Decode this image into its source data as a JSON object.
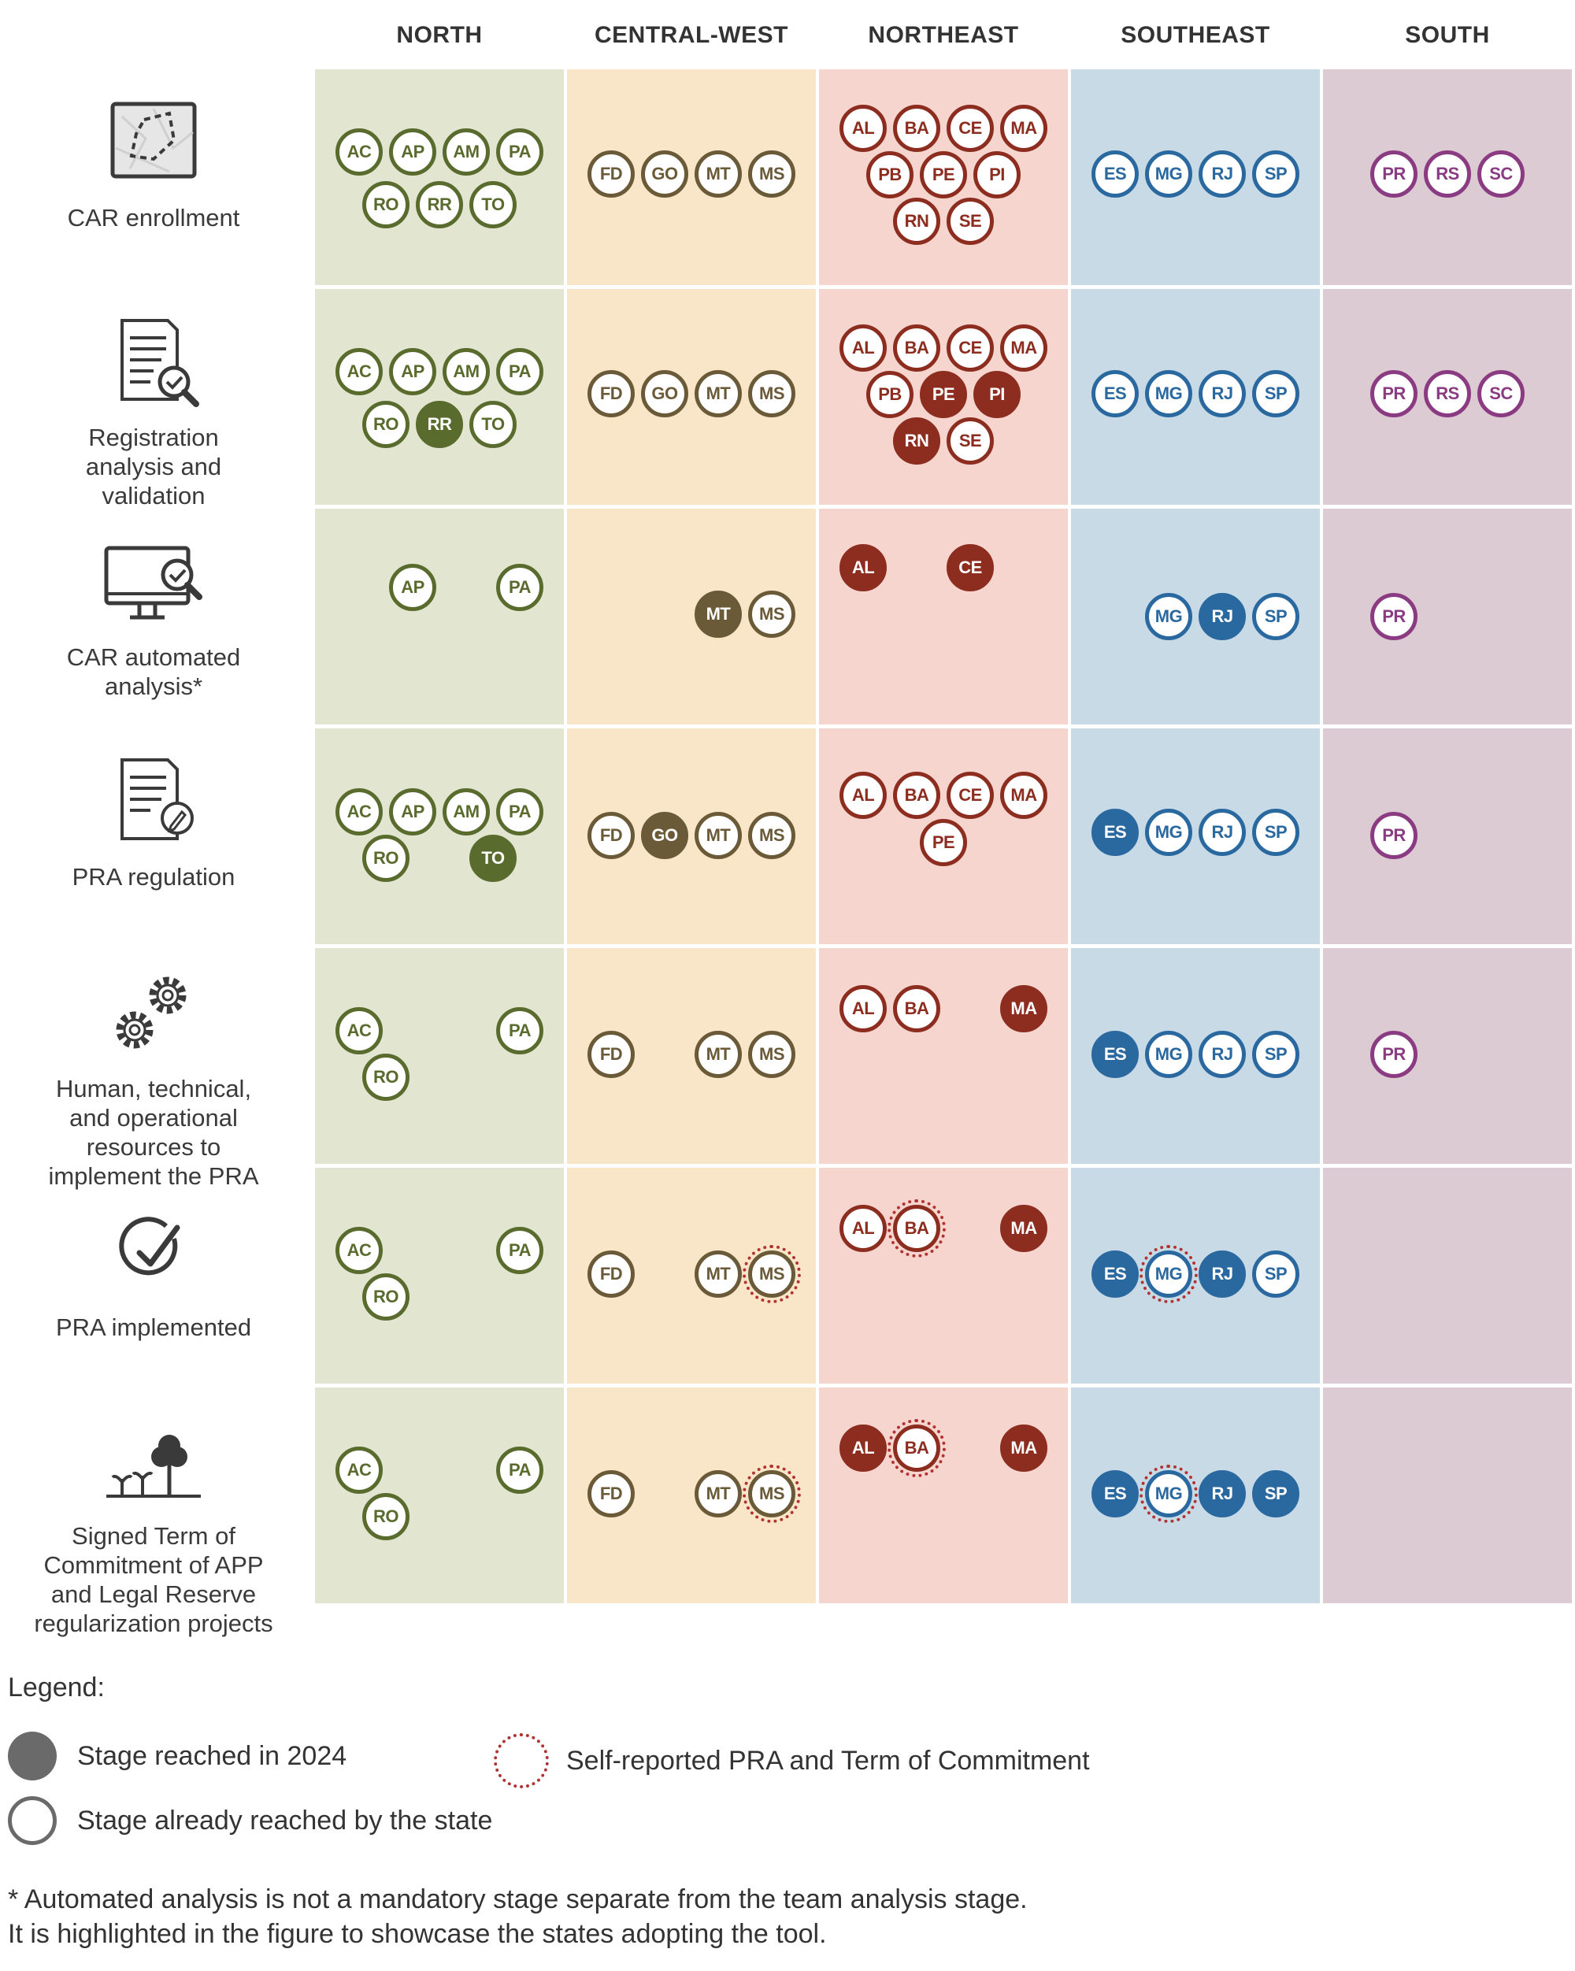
{
  "regions": [
    {
      "name": "NORTH",
      "bg": "#e2e6d1",
      "color": "#5a6b2e"
    },
    {
      "name": "CENTRAL-WEST",
      "bg": "#f9e6c8",
      "color": "#6b5a38"
    },
    {
      "name": "NORTHEAST",
      "bg": "#f5d5cd",
      "color": "#8c2d20"
    },
    {
      "name": "SOUTHEAST",
      "bg": "#c8dae5",
      "color": "#2a68a0"
    },
    {
      "name": "SOUTH",
      "bg": "#dccbd3",
      "color": "#8a3b82"
    }
  ],
  "stages": [
    {
      "label": "CAR enrollment",
      "icon": "map-icon"
    },
    {
      "label": "Registration analysis and validation",
      "icon": "document-search-icon"
    },
    {
      "label": "CAR automated analysis*",
      "icon": "computer-check-icon"
    },
    {
      "label": "PRA regulation",
      "icon": "document-pen-icon"
    },
    {
      "label": "Human, technical, and operational resources to implement the PRA",
      "icon": "gears-icon"
    },
    {
      "label": "PRA implemented",
      "icon": "checkmark-icon"
    },
    {
      "label": "Signed Term of Commitment of APP and Legal Reserve regularization projects",
      "icon": "trees-icon"
    }
  ],
  "cells": [
    [
      [
        {
          "s": "AC",
          "st": "o"
        },
        {
          "s": "AP",
          "st": "o"
        },
        {
          "s": "AM",
          "st": "o"
        },
        {
          "s": "PA",
          "st": "o"
        },
        {
          "s": "RO",
          "st": "o"
        },
        {
          "s": "RR",
          "st": "o"
        },
        {
          "s": "TO",
          "st": "o"
        }
      ],
      [
        {
          "s": "FD",
          "st": "o"
        },
        {
          "s": "GO",
          "st": "o"
        },
        {
          "s": "MT",
          "st": "o"
        },
        {
          "s": "MS",
          "st": "o"
        }
      ],
      [
        {
          "s": "AL",
          "st": "o"
        },
        {
          "s": "BA",
          "st": "o"
        },
        {
          "s": "CE",
          "st": "o"
        },
        {
          "s": "MA",
          "st": "o"
        },
        {
          "s": "PB",
          "st": "o"
        },
        {
          "s": "PE",
          "st": "o"
        },
        {
          "s": "PI",
          "st": "o"
        },
        {
          "s": "RN",
          "st": "o"
        },
        {
          "s": "SE",
          "st": "o"
        }
      ],
      [
        {
          "s": "ES",
          "st": "o"
        },
        {
          "s": "MG",
          "st": "o"
        },
        {
          "s": "RJ",
          "st": "o"
        },
        {
          "s": "SP",
          "st": "o"
        }
      ],
      [
        {
          "s": "PR",
          "st": "o"
        },
        {
          "s": "RS",
          "st": "o"
        },
        {
          "s": "SC",
          "st": "o"
        }
      ]
    ],
    [
      [
        {
          "s": "AC",
          "st": "o"
        },
        {
          "s": "AP",
          "st": "o"
        },
        {
          "s": "AM",
          "st": "o"
        },
        {
          "s": "PA",
          "st": "o"
        },
        {
          "s": "RO",
          "st": "o"
        },
        {
          "s": "RR",
          "st": "f"
        },
        {
          "s": "TO",
          "st": "o"
        }
      ],
      [
        {
          "s": "FD",
          "st": "o"
        },
        {
          "s": "GO",
          "st": "o"
        },
        {
          "s": "MT",
          "st": "o"
        },
        {
          "s": "MS",
          "st": "o"
        }
      ],
      [
        {
          "s": "AL",
          "st": "o"
        },
        {
          "s": "BA",
          "st": "o"
        },
        {
          "s": "CE",
          "st": "o"
        },
        {
          "s": "MA",
          "st": "o"
        },
        {
          "s": "PB",
          "st": "o"
        },
        {
          "s": "PE",
          "st": "f"
        },
        {
          "s": "PI",
          "st": "f"
        },
        {
          "s": "RN",
          "st": "f"
        },
        {
          "s": "SE",
          "st": "o"
        }
      ],
      [
        {
          "s": "ES",
          "st": "o"
        },
        {
          "s": "MG",
          "st": "o"
        },
        {
          "s": "RJ",
          "st": "o"
        },
        {
          "s": "SP",
          "st": "o"
        }
      ],
      [
        {
          "s": "PR",
          "st": "o"
        },
        {
          "s": "RS",
          "st": "o"
        },
        {
          "s": "SC",
          "st": "o"
        }
      ]
    ],
    [
      [
        {
          "s": "AP",
          "st": "o"
        },
        {
          "s": "PA",
          "st": "o"
        }
      ],
      [
        {
          "s": "MT",
          "st": "f"
        },
        {
          "s": "MS",
          "st": "o"
        }
      ],
      [
        {
          "s": "AL",
          "st": "f"
        },
        {
          "s": "CE",
          "st": "f"
        }
      ],
      [
        {
          "s": "MG",
          "st": "o"
        },
        {
          "s": "RJ",
          "st": "f"
        },
        {
          "s": "SP",
          "st": "o"
        }
      ],
      [
        {
          "s": "PR",
          "st": "o"
        }
      ]
    ],
    [
      [
        {
          "s": "AC",
          "st": "o"
        },
        {
          "s": "AP",
          "st": "o"
        },
        {
          "s": "AM",
          "st": "o"
        },
        {
          "s": "PA",
          "st": "o"
        },
        {
          "s": "RO",
          "st": "o"
        },
        {
          "s": "TO",
          "st": "f"
        }
      ],
      [
        {
          "s": "FD",
          "st": "o"
        },
        {
          "s": "GO",
          "st": "f"
        },
        {
          "s": "MT",
          "st": "o"
        },
        {
          "s": "MS",
          "st": "o"
        }
      ],
      [
        {
          "s": "AL",
          "st": "o"
        },
        {
          "s": "BA",
          "st": "o"
        },
        {
          "s": "CE",
          "st": "o"
        },
        {
          "s": "MA",
          "st": "o"
        },
        {
          "s": "PE",
          "st": "o"
        }
      ],
      [
        {
          "s": "ES",
          "st": "f"
        },
        {
          "s": "MG",
          "st": "o"
        },
        {
          "s": "RJ",
          "st": "o"
        },
        {
          "s": "SP",
          "st": "o"
        }
      ],
      [
        {
          "s": "PR",
          "st": "o"
        }
      ]
    ],
    [
      [
        {
          "s": "AC",
          "st": "o"
        },
        {
          "s": "PA",
          "st": "o"
        },
        {
          "s": "RO",
          "st": "o"
        }
      ],
      [
        {
          "s": "FD",
          "st": "o"
        },
        {
          "s": "MT",
          "st": "o"
        },
        {
          "s": "MS",
          "st": "o"
        }
      ],
      [
        {
          "s": "AL",
          "st": "o"
        },
        {
          "s": "BA",
          "st": "o"
        },
        {
          "s": "MA",
          "st": "f"
        }
      ],
      [
        {
          "s": "ES",
          "st": "f"
        },
        {
          "s": "MG",
          "st": "o"
        },
        {
          "s": "RJ",
          "st": "o"
        },
        {
          "s": "SP",
          "st": "o"
        }
      ],
      [
        {
          "s": "PR",
          "st": "o"
        }
      ]
    ],
    [
      [
        {
          "s": "AC",
          "st": "o"
        },
        {
          "s": "PA",
          "st": "o"
        },
        {
          "s": "RO",
          "st": "o"
        }
      ],
      [
        {
          "s": "FD",
          "st": "o"
        },
        {
          "s": "MT",
          "st": "o"
        },
        {
          "s": "MS",
          "st": "o",
          "self": true
        }
      ],
      [
        {
          "s": "AL",
          "st": "o"
        },
        {
          "s": "BA",
          "st": "o",
          "self": true
        },
        {
          "s": "MA",
          "st": "f"
        }
      ],
      [
        {
          "s": "ES",
          "st": "f"
        },
        {
          "s": "MG",
          "st": "o",
          "self": true
        },
        {
          "s": "RJ",
          "st": "f"
        },
        {
          "s": "SP",
          "st": "o"
        }
      ],
      []
    ],
    [
      [
        {
          "s": "AC",
          "st": "o"
        },
        {
          "s": "PA",
          "st": "o"
        },
        {
          "s": "RO",
          "st": "o"
        }
      ],
      [
        {
          "s": "FD",
          "st": "o"
        },
        {
          "s": "MT",
          "st": "o"
        },
        {
          "s": "MS",
          "st": "o",
          "self": true
        }
      ],
      [
        {
          "s": "AL",
          "st": "f"
        },
        {
          "s": "BA",
          "st": "o",
          "self": true
        },
        {
          "s": "MA",
          "st": "f"
        }
      ],
      [
        {
          "s": "ES",
          "st": "f"
        },
        {
          "s": "MG",
          "st": "o",
          "self": true
        },
        {
          "s": "RJ",
          "st": "f"
        },
        {
          "s": "SP",
          "st": "f"
        }
      ],
      []
    ]
  ],
  "legend": {
    "title": "Legend:",
    "filled": "Stage reached in 2024",
    "outline": "Stage already reached by the state",
    "self": "Self-reported PRA and Term of Commitment"
  },
  "footnote": {
    "line1": "* Automated analysis is not a mandatory stage separate from the team analysis stage.",
    "line2": "It is highlighted in the figure to showcase the states adopting the tool."
  }
}
